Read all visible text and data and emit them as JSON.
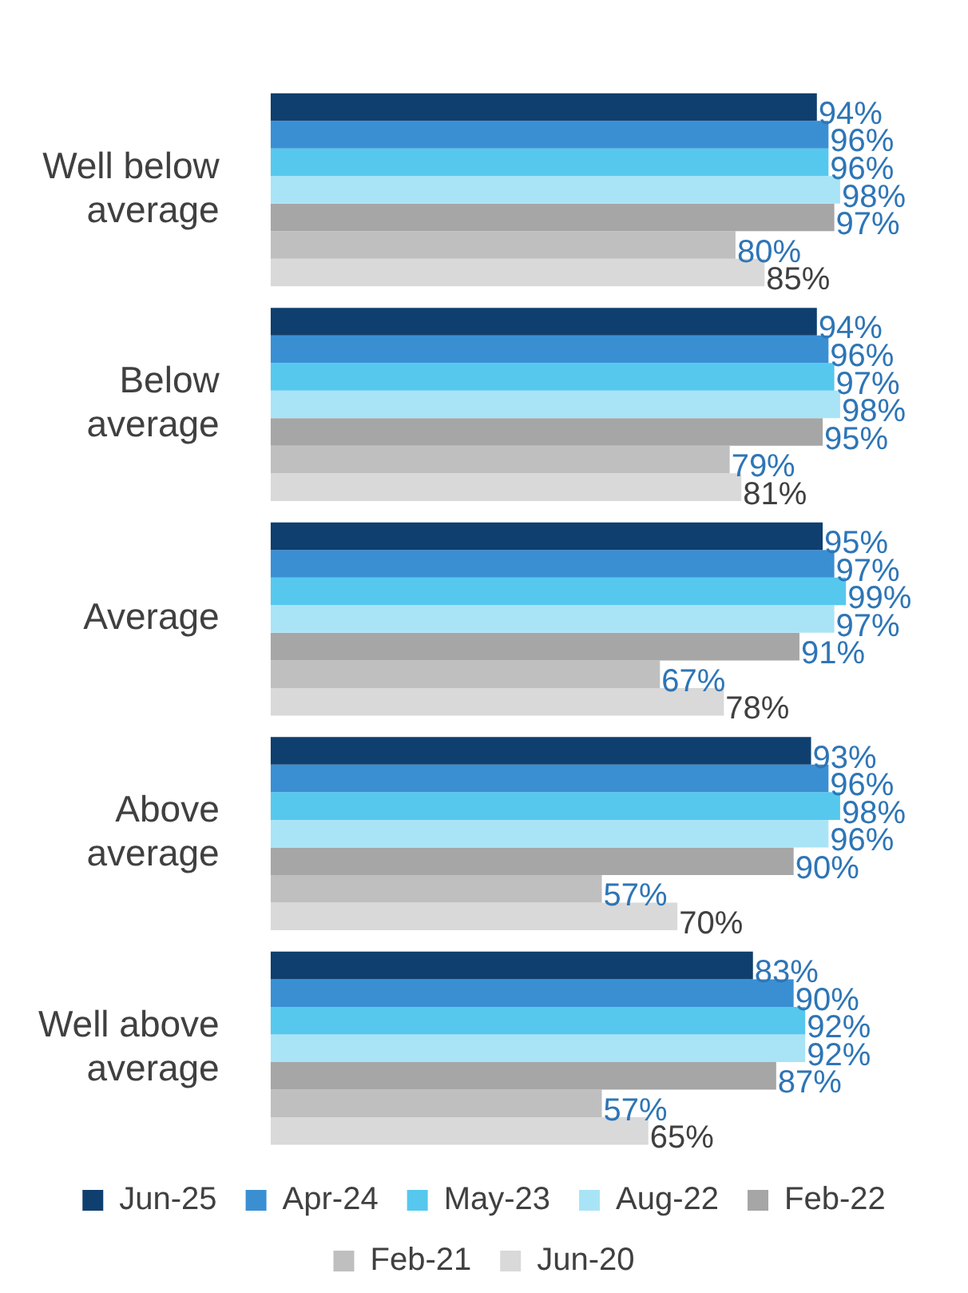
{
  "chart_data": {
    "type": "bar",
    "orientation": "horizontal",
    "categories": [
      "Well below average",
      "Below average",
      "Average",
      "Above average",
      "Well above average"
    ],
    "series": [
      {
        "name": "Jun-25",
        "color": "#0f3f6e",
        "values": [
          94,
          94,
          95,
          93,
          83
        ],
        "value_labels": [
          "94%",
          "94%",
          "95%",
          "93%",
          "83%"
        ]
      },
      {
        "name": "Apr-24",
        "color": "#3a8fd3",
        "values": [
          96,
          96,
          97,
          96,
          90
        ],
        "value_labels": [
          "96%",
          "96%",
          "97%",
          "96%",
          "90%"
        ]
      },
      {
        "name": "May-23",
        "color": "#56c8ee",
        "values": [
          96,
          97,
          99,
          98,
          92
        ],
        "value_labels": [
          "96%",
          "97%",
          "99%",
          "98%",
          "92%"
        ]
      },
      {
        "name": "Aug-22",
        "color": "#a9e4f6",
        "values": [
          98,
          98,
          97,
          96,
          92
        ],
        "value_labels": [
          "98%",
          "98%",
          "97%",
          "96%",
          "92%"
        ]
      },
      {
        "name": "Feb-22",
        "color": "#a6a6a6",
        "values": [
          97,
          95,
          91,
          90,
          87
        ],
        "value_labels": [
          "97%",
          "95%",
          "91%",
          "90%",
          "87%"
        ]
      },
      {
        "name": "Feb-21",
        "color": "#bfbfbf",
        "values": [
          80,
          79,
          67,
          57,
          57
        ],
        "value_labels": [
          "80%",
          "79%",
          "67%",
          "57%",
          "57%"
        ]
      },
      {
        "name": "Jun-20",
        "color": "#d9d9d9",
        "values": [
          85,
          81,
          78,
          70,
          65
        ],
        "value_labels": [
          "85%",
          "81%",
          "78%",
          "70%",
          "65%"
        ]
      }
    ],
    "grid": false,
    "legend": "bottom"
  }
}
